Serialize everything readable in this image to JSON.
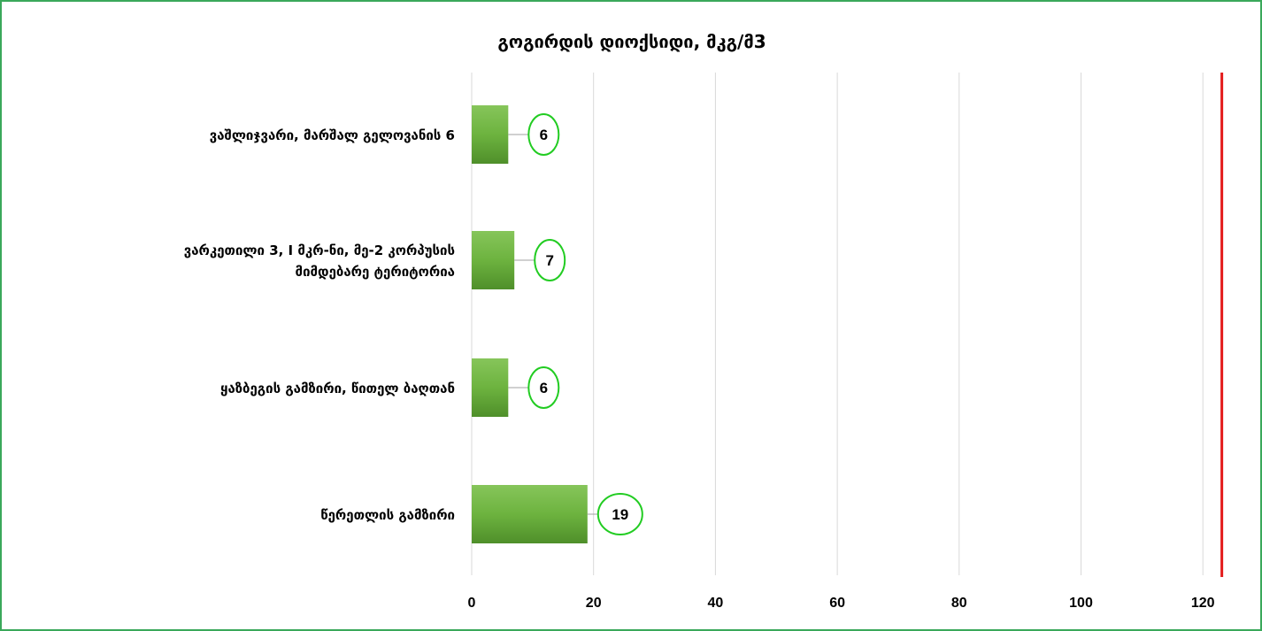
{
  "chart_data": {
    "type": "bar",
    "orientation": "horizontal",
    "title": "გოგირდის დიოქსიდი, მკგ/მ3",
    "categories": [
      [
        "ვაშლიჯვარი, მარშალ გელოვანის 6"
      ],
      [
        "ვარკეთილი 3, I მკრ-ნი, მე-2 კორპუსის",
        "მიმდებარე ტერიტორია"
      ],
      [
        "ყაზბეგის გამზირი, წითელ ბაღთან"
      ],
      [
        "წერეთლის გამზირი"
      ]
    ],
    "values": [
      6,
      7,
      6,
      19
    ],
    "data_labels": [
      "6",
      "7",
      "6",
      "19"
    ],
    "xlim": [
      0,
      125
    ],
    "xticks": [
      0,
      20,
      40,
      60,
      80,
      100,
      120
    ],
    "xtick_labels": [
      "0",
      "20",
      "40",
      "60",
      "80",
      100,
      120
    ],
    "grid": true,
    "reference_line": 125,
    "colors": {
      "bar": "#6db33f",
      "bar_dark": "#4f8f2a",
      "label_ring": "#22cc22",
      "reference_line": "#e31b1b",
      "grid": "#d9d9d9",
      "frame": "#3aa85a"
    }
  }
}
